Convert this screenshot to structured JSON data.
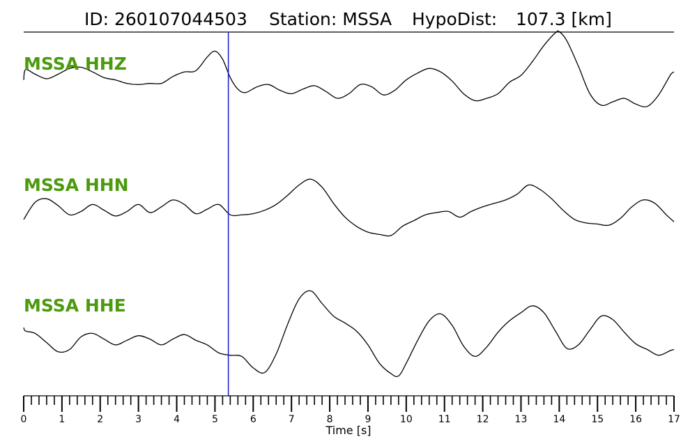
{
  "header": {
    "id_text": "ID: 260107044503",
    "station_text": "Station: MSSA",
    "hypodist_label": "HypoDist:",
    "hypodist_value": "107.3 [km]"
  },
  "colors": {
    "trace": "#000000",
    "channel_label": "#4c9a0e",
    "pick_line": "#1a1acc",
    "axis": "#000000"
  },
  "chart_data": {
    "type": "line",
    "title": "ID: 260107044503   Station: MSSA   HypoDist:   107.3 [km]",
    "xlabel": "Time [s]",
    "ylabel": "",
    "xlim": [
      0,
      17
    ],
    "major_ticks": [
      0,
      1,
      2,
      3,
      4,
      5,
      6,
      7,
      8,
      9,
      10,
      11,
      12,
      13,
      14,
      15,
      16,
      17
    ],
    "minor_tick_step": 0.2,
    "pick_time": 5.35,
    "grid": false,
    "series": [
      {
        "name": "MSSA HHZ",
        "x": [
          0,
          0.05,
          0.3,
          0.6,
          0.9,
          1.2,
          1.5,
          1.8,
          2.1,
          2.4,
          2.7,
          3.0,
          3.3,
          3.6,
          3.9,
          4.2,
          4.5,
          4.8,
          5.0,
          5.2,
          5.4,
          5.6,
          5.8,
          6.1,
          6.4,
          6.7,
          7.0,
          7.3,
          7.6,
          7.9,
          8.2,
          8.5,
          8.8,
          9.1,
          9.4,
          9.7,
          10.0,
          10.3,
          10.6,
          10.9,
          11.2,
          11.5,
          11.8,
          12.1,
          12.4,
          12.7,
          13.0,
          13.3,
          13.6,
          13.9,
          14.0,
          14.2,
          14.5,
          14.8,
          15.1,
          15.4,
          15.7,
          16.0,
          16.3,
          16.6,
          16.9,
          17.0
        ],
        "y": [
          0.1,
          0.55,
          0.35,
          0.15,
          0.35,
          0.6,
          0.65,
          0.45,
          0.2,
          0.1,
          -0.05,
          -0.1,
          -0.05,
          -0.05,
          0.25,
          0.45,
          0.5,
          1.1,
          1.35,
          1.0,
          0.2,
          -0.3,
          -0.45,
          -0.2,
          -0.1,
          -0.35,
          -0.5,
          -0.3,
          -0.15,
          -0.4,
          -0.7,
          -0.5,
          -0.1,
          -0.2,
          -0.55,
          -0.35,
          0.1,
          0.4,
          0.6,
          0.45,
          0.05,
          -0.5,
          -0.8,
          -0.7,
          -0.5,
          0.0,
          0.3,
          0.9,
          1.6,
          2.15,
          2.2,
          1.8,
          0.7,
          -0.5,
          -1.0,
          -0.85,
          -0.7,
          -0.95,
          -1.05,
          -0.55,
          0.3,
          0.45
        ]
      },
      {
        "name": "MSSA HHN",
        "x": [
          0,
          0.3,
          0.6,
          0.9,
          1.2,
          1.5,
          1.8,
          2.1,
          2.4,
          2.7,
          3.0,
          3.3,
          3.6,
          3.9,
          4.2,
          4.5,
          4.8,
          5.1,
          5.4,
          5.7,
          6.0,
          6.3,
          6.6,
          6.9,
          7.2,
          7.5,
          7.8,
          8.1,
          8.4,
          8.7,
          9.0,
          9.3,
          9.6,
          9.9,
          10.2,
          10.5,
          10.8,
          11.1,
          11.4,
          11.7,
          12.0,
          12.3,
          12.6,
          12.9,
          13.2,
          13.5,
          13.8,
          14.1,
          14.4,
          14.7,
          15.0,
          15.3,
          15.6,
          15.9,
          16.2,
          16.5,
          16.8,
          17.0
        ],
        "y": [
          -0.3,
          0.45,
          0.6,
          0.3,
          -0.1,
          0.05,
          0.35,
          0.1,
          -0.15,
          0.05,
          0.35,
          0.0,
          0.25,
          0.55,
          0.35,
          -0.05,
          0.15,
          0.35,
          -0.1,
          -0.1,
          -0.05,
          0.1,
          0.35,
          0.75,
          1.2,
          1.45,
          1.1,
          0.4,
          -0.2,
          -0.6,
          -0.85,
          -0.95,
          -1.0,
          -0.6,
          -0.35,
          -0.1,
          0.0,
          0.05,
          -0.2,
          0.05,
          0.25,
          0.4,
          0.55,
          0.8,
          1.2,
          1.0,
          0.6,
          0.1,
          -0.3,
          -0.45,
          -0.5,
          -0.55,
          -0.25,
          0.25,
          0.55,
          0.4,
          -0.1,
          -0.4
        ]
      },
      {
        "name": "MSSA HHE",
        "x": [
          0,
          0.05,
          0.3,
          0.6,
          0.9,
          1.2,
          1.5,
          1.8,
          2.1,
          2.4,
          2.7,
          3.0,
          3.3,
          3.6,
          3.9,
          4.2,
          4.5,
          4.8,
          5.1,
          5.4,
          5.7,
          6.0,
          6.3,
          6.6,
          6.9,
          7.2,
          7.5,
          7.8,
          8.1,
          8.4,
          8.7,
          9.0,
          9.3,
          9.6,
          9.8,
          10.0,
          10.3,
          10.6,
          10.9,
          11.2,
          11.5,
          11.8,
          12.1,
          12.4,
          12.7,
          13.0,
          13.3,
          13.6,
          13.9,
          14.2,
          14.5,
          14.8,
          15.1,
          15.4,
          15.7,
          16.0,
          16.3,
          16.6,
          16.9,
          17.0
        ],
        "y": [
          0.45,
          0.3,
          0.2,
          -0.2,
          -0.6,
          -0.5,
          0.05,
          0.2,
          -0.05,
          -0.3,
          -0.1,
          0.1,
          -0.05,
          -0.3,
          -0.05,
          0.15,
          -0.1,
          -0.3,
          -0.65,
          -0.75,
          -0.8,
          -1.3,
          -1.5,
          -0.7,
          0.6,
          1.7,
          2.05,
          1.5,
          0.95,
          0.65,
          0.3,
          -0.3,
          -1.1,
          -1.55,
          -1.65,
          -1.1,
          -0.1,
          0.75,
          1.05,
          0.55,
          -0.35,
          -0.8,
          -0.4,
          0.25,
          0.75,
          1.1,
          1.4,
          1.1,
          0.3,
          -0.45,
          -0.3,
          0.35,
          0.95,
          0.8,
          0.25,
          -0.25,
          -0.5,
          -0.75,
          -0.55,
          -0.5
        ]
      }
    ]
  }
}
